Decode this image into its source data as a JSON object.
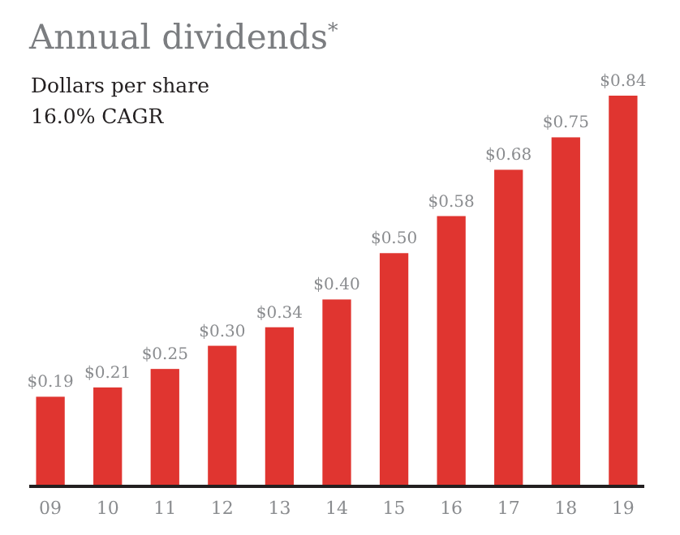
{
  "chart_data": {
    "type": "bar",
    "title": "Annual dividends$^{*}$",
    "subtitle": "Dollars per share",
    "annotations": [
      "16.0% CAGR"
    ],
    "categories": [
      "09",
      "10",
      "11",
      "12",
      "13",
      "14",
      "15",
      "16",
      "17",
      "18",
      "19"
    ],
    "values": [
      0.19,
      0.21,
      0.25,
      0.3,
      0.34,
      0.4,
      0.5,
      0.58,
      0.68,
      0.75,
      0.84
    ],
    "value_labels": [
      "$0.19",
      "$0.21",
      "$0.25",
      "$0.30",
      "$0.34",
      "$0.40",
      "$0.50",
      "$0.58",
      "$0.68",
      "$0.75",
      "$0.84"
    ],
    "color": "#e03530"
  }
}
